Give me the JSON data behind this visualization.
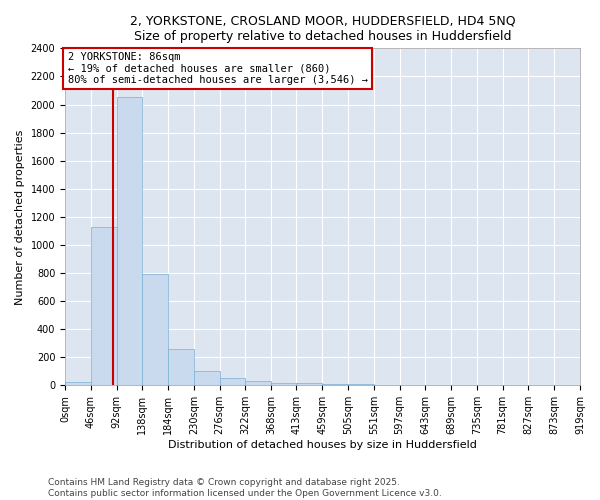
{
  "title1": "2, YORKSTONE, CROSLAND MOOR, HUDDERSFIELD, HD4 5NQ",
  "title2": "Size of property relative to detached houses in Huddersfield",
  "xlabel": "Distribution of detached houses by size in Huddersfield",
  "ylabel": "Number of detached properties",
  "bar_color": "#c9d9ee",
  "bar_edge_color": "#7aafd4",
  "background_color": "#dde6f0",
  "grid_color": "#ffffff",
  "property_size": 86,
  "vline_color": "#cc0000",
  "annotation_line1": "2 YORKSTONE: 86sqm",
  "annotation_line2": "← 19% of detached houses are smaller (860)",
  "annotation_line3": "80% of semi-detached houses are larger (3,546) →",
  "annotation_box_color": "#cc0000",
  "bins": [
    0,
    46,
    92,
    138,
    184,
    230,
    276,
    322,
    368,
    413,
    459,
    505,
    551,
    597,
    643,
    689,
    735,
    781,
    827,
    873,
    919
  ],
  "bar_heights": [
    25,
    1130,
    2050,
    790,
    260,
    100,
    50,
    30,
    20,
    15,
    10,
    8,
    5,
    4,
    3,
    3,
    2,
    2,
    1,
    1
  ],
  "ylim": [
    0,
    2400
  ],
  "yticks": [
    0,
    200,
    400,
    600,
    800,
    1000,
    1200,
    1400,
    1600,
    1800,
    2000,
    2200,
    2400
  ],
  "xtick_labels": [
    "0sqm",
    "46sqm",
    "92sqm",
    "138sqm",
    "184sqm",
    "230sqm",
    "276sqm",
    "322sqm",
    "368sqm",
    "413sqm",
    "459sqm",
    "505sqm",
    "551sqm",
    "597sqm",
    "643sqm",
    "689sqm",
    "735sqm",
    "781sqm",
    "827sqm",
    "873sqm",
    "919sqm"
  ],
  "footer_text": "Contains HM Land Registry data © Crown copyright and database right 2025.\nContains public sector information licensed under the Open Government Licence v3.0.",
  "title_fontsize": 9,
  "axis_label_fontsize": 8,
  "tick_fontsize": 7,
  "footer_fontsize": 6.5,
  "annot_fontsize": 7.5
}
